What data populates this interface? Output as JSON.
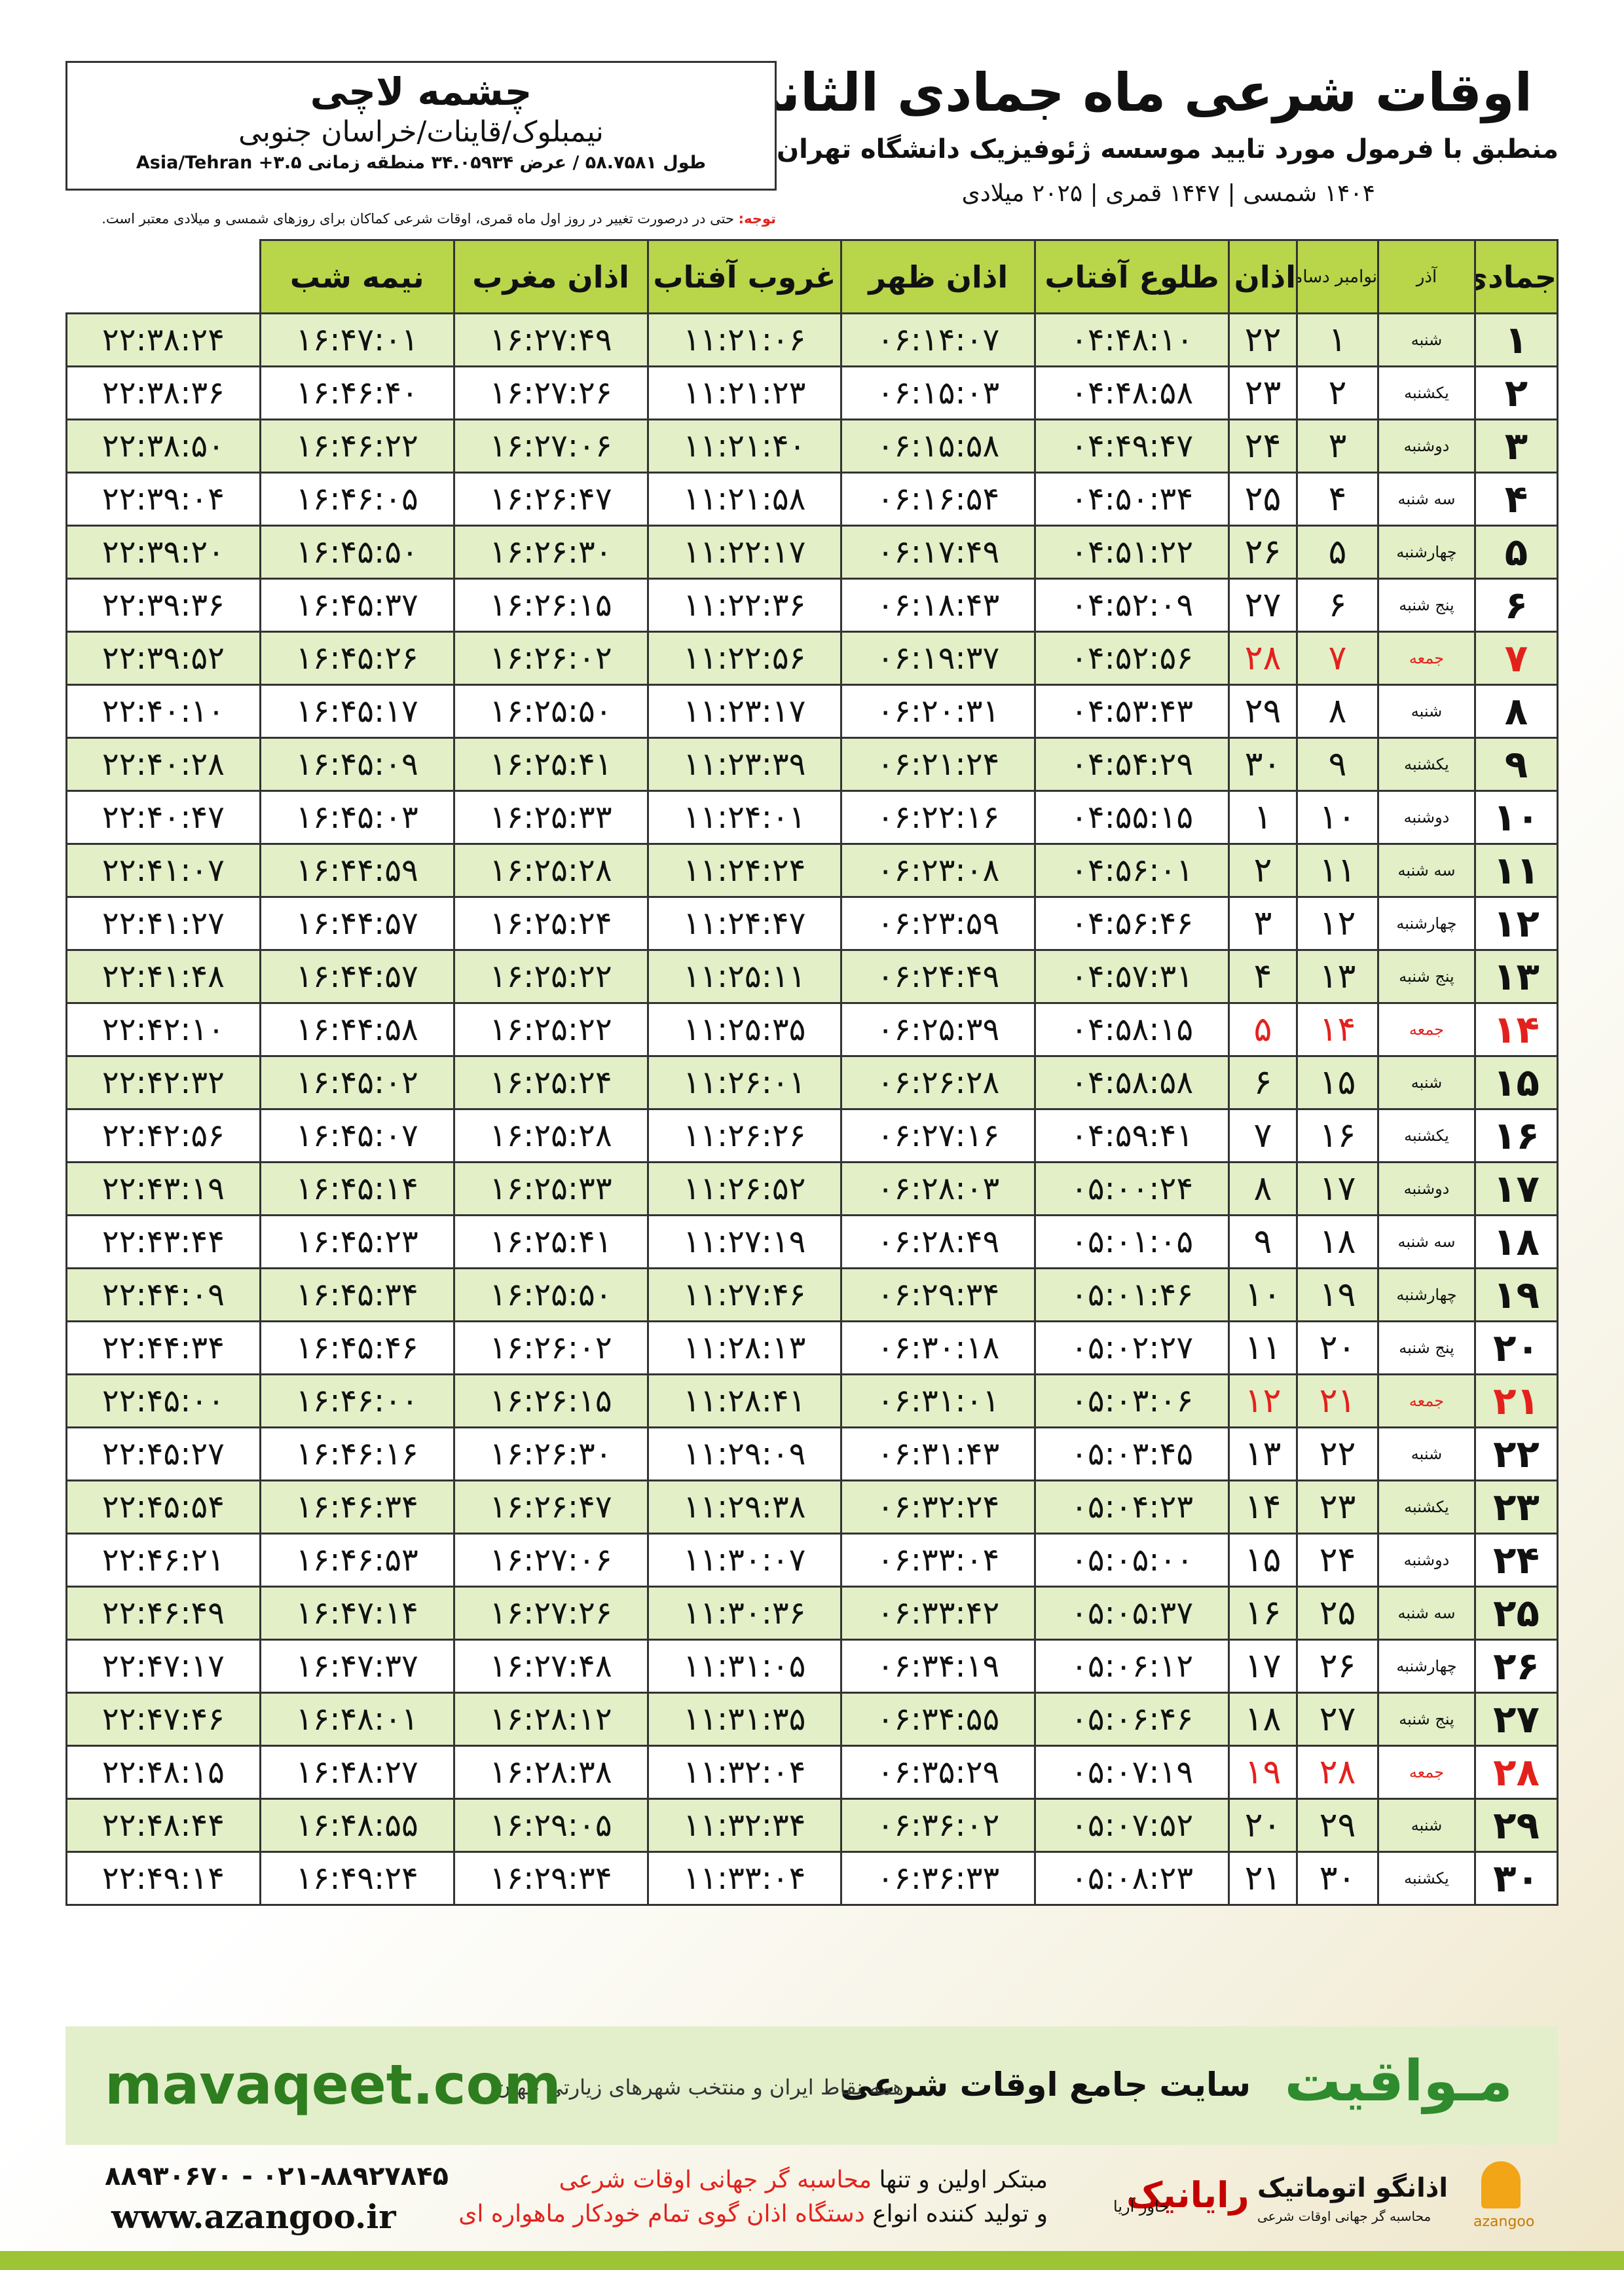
{
  "header": {
    "title": "اوقات شرعی ماه جمادی الثانی",
    "subtitle": "منطبق با فرمول مورد تایید موسسه ژئوفیزیک دانشگاه تهران",
    "dates": "۱۴۰۴ شمسی | ۱۴۴۷ قمری | ۲۰۲۵ میلادی"
  },
  "location": {
    "name": "چشمه لاچی",
    "region": "نیمبلوک/قاینات/خراسان جنوبی",
    "coords": "طول ۵۸.۷۵۸۱ / عرض ۳۴.۰۵۹۳۴ منطقه زمانی ۳.۵+ Asia/Tehran"
  },
  "note": {
    "label": "توجه:",
    "text": "حتی در درصورت تغییر در روز اول ماه قمری، اوقات شرعی کماکان برای روزهای شمسی و میلادی معتبر است."
  },
  "table": {
    "columns": [
      "جمادی الثانی",
      "آذر",
      "نوامبر دسامبر",
      "اذان صبح",
      "طلوع آفتاب",
      "اذان ظهر",
      "غروب آفتاب",
      "اذان مغرب",
      "نیمه شب"
    ],
    "rows": [
      {
        "cells": [
          "۱",
          "شنبه",
          "۱",
          "۲۲",
          "۰۴:۴۸:۱۰",
          "۰۶:۱۴:۰۷",
          "۱۱:۲۱:۰۶",
          "۱۶:۲۷:۴۹",
          "۱۶:۴۷:۰۱",
          "۲۲:۳۸:۲۴"
        ]
      },
      {
        "cells": [
          "۲",
          "یکشنبه",
          "۲",
          "۲۳",
          "۰۴:۴۸:۵۸",
          "۰۶:۱۵:۰۳",
          "۱۱:۲۱:۲۳",
          "۱۶:۲۷:۲۶",
          "۱۶:۴۶:۴۰",
          "۲۲:۳۸:۳۶"
        ]
      },
      {
        "cells": [
          "۳",
          "دوشنبه",
          "۳",
          "۲۴",
          "۰۴:۴۹:۴۷",
          "۰۶:۱۵:۵۸",
          "۱۱:۲۱:۴۰",
          "۱۶:۲۷:۰۶",
          "۱۶:۴۶:۲۲",
          "۲۲:۳۸:۵۰"
        ]
      },
      {
        "cells": [
          "۴",
          "سه شنبه",
          "۴",
          "۲۵",
          "۰۴:۵۰:۳۴",
          "۰۶:۱۶:۵۴",
          "۱۱:۲۱:۵۸",
          "۱۶:۲۶:۴۷",
          "۱۶:۴۶:۰۵",
          "۲۲:۳۹:۰۴"
        ]
      },
      {
        "cells": [
          "۵",
          "چهارشنبه",
          "۵",
          "۲۶",
          "۰۴:۵۱:۲۲",
          "۰۶:۱۷:۴۹",
          "۱۱:۲۲:۱۷",
          "۱۶:۲۶:۳۰",
          "۱۶:۴۵:۵۰",
          "۲۲:۳۹:۲۰"
        ]
      },
      {
        "cells": [
          "۶",
          "پنج شنبه",
          "۶",
          "۲۷",
          "۰۴:۵۲:۰۹",
          "۰۶:۱۸:۴۳",
          "۱۱:۲۲:۳۶",
          "۱۶:۲۶:۱۵",
          "۱۶:۴۵:۳۷",
          "۲۲:۳۹:۳۶"
        ]
      },
      {
        "cells": [
          "۷",
          "جمعه",
          "۷",
          "۲۸",
          "۰۴:۵۲:۵۶",
          "۰۶:۱۹:۳۷",
          "۱۱:۲۲:۵۶",
          "۱۶:۲۶:۰۲",
          "۱۶:۴۵:۲۶",
          "۲۲:۳۹:۵۲"
        ],
        "color": "#e3211c"
      },
      {
        "cells": [
          "۸",
          "شنبه",
          "۸",
          "۲۹",
          "۰۴:۵۳:۴۳",
          "۰۶:۲۰:۳۱",
          "۱۱:۲۳:۱۷",
          "۱۶:۲۵:۵۰",
          "۱۶:۴۵:۱۷",
          "۲۲:۴۰:۱۰"
        ]
      },
      {
        "cells": [
          "۹",
          "یکشنبه",
          "۹",
          "۳۰",
          "۰۴:۵۴:۲۹",
          "۰۶:۲۱:۲۴",
          "۱۱:۲۳:۳۹",
          "۱۶:۲۵:۴۱",
          "۱۶:۴۵:۰۹",
          "۲۲:۴۰:۲۸"
        ]
      },
      {
        "cells": [
          "۱۰",
          "دوشنبه",
          "۱۰",
          "۱",
          "۰۴:۵۵:۱۵",
          "۰۶:۲۲:۱۶",
          "۱۱:۲۴:۰۱",
          "۱۶:۲۵:۳۳",
          "۱۶:۴۵:۰۳",
          "۲۲:۴۰:۴۷"
        ]
      },
      {
        "cells": [
          "۱۱",
          "سه شنبه",
          "۱۱",
          "۲",
          "۰۴:۵۶:۰۱",
          "۰۶:۲۳:۰۸",
          "۱۱:۲۴:۲۴",
          "۱۶:۲۵:۲۸",
          "۱۶:۴۴:۵۹",
          "۲۲:۴۱:۰۷"
        ]
      },
      {
        "cells": [
          "۱۲",
          "چهارشنبه",
          "۱۲",
          "۳",
          "۰۴:۵۶:۴۶",
          "۰۶:۲۳:۵۹",
          "۱۱:۲۴:۴۷",
          "۱۶:۲۵:۲۴",
          "۱۶:۴۴:۵۷",
          "۲۲:۴۱:۲۷"
        ]
      },
      {
        "cells": [
          "۱۳",
          "پنج شنبه",
          "۱۳",
          "۴",
          "۰۴:۵۷:۳۱",
          "۰۶:۲۴:۴۹",
          "۱۱:۲۵:۱۱",
          "۱۶:۲۵:۲۲",
          "۱۶:۴۴:۵۷",
          "۲۲:۴۱:۴۸"
        ]
      },
      {
        "cells": [
          "۱۴",
          "جمعه",
          "۱۴",
          "۵",
          "۰۴:۵۸:۱۵",
          "۰۶:۲۵:۳۹",
          "۱۱:۲۵:۳۵",
          "۱۶:۲۵:۲۲",
          "۱۶:۴۴:۵۸",
          "۲۲:۴۲:۱۰"
        ],
        "color": "#e3211c"
      },
      {
        "cells": [
          "۱۵",
          "شنبه",
          "۱۵",
          "۶",
          "۰۴:۵۸:۵۸",
          "۰۶:۲۶:۲۸",
          "۱۱:۲۶:۰۱",
          "۱۶:۲۵:۲۴",
          "۱۶:۴۵:۰۲",
          "۲۲:۴۲:۳۲"
        ]
      },
      {
        "cells": [
          "۱۶",
          "یکشنبه",
          "۱۶",
          "۷",
          "۰۴:۵۹:۴۱",
          "۰۶:۲۷:۱۶",
          "۱۱:۲۶:۲۶",
          "۱۶:۲۵:۲۸",
          "۱۶:۴۵:۰۷",
          "۲۲:۴۲:۵۶"
        ]
      },
      {
        "cells": [
          "۱۷",
          "دوشنبه",
          "۱۷",
          "۸",
          "۰۵:۰۰:۲۴",
          "۰۶:۲۸:۰۳",
          "۱۱:۲۶:۵۲",
          "۱۶:۲۵:۳۳",
          "۱۶:۴۵:۱۴",
          "۲۲:۴۳:۱۹"
        ]
      },
      {
        "cells": [
          "۱۸",
          "سه شنبه",
          "۱۸",
          "۹",
          "۰۵:۰۱:۰۵",
          "۰۶:۲۸:۴۹",
          "۱۱:۲۷:۱۹",
          "۱۶:۲۵:۴۱",
          "۱۶:۴۵:۲۳",
          "۲۲:۴۳:۴۴"
        ]
      },
      {
        "cells": [
          "۱۹",
          "چهارشنبه",
          "۱۹",
          "۱۰",
          "۰۵:۰۱:۴۶",
          "۰۶:۲۹:۳۴",
          "۱۱:۲۷:۴۶",
          "۱۶:۲۵:۵۰",
          "۱۶:۴۵:۳۴",
          "۲۲:۴۴:۰۹"
        ]
      },
      {
        "cells": [
          "۲۰",
          "پنج شنبه",
          "۲۰",
          "۱۱",
          "۰۵:۰۲:۲۷",
          "۰۶:۳۰:۱۸",
          "۱۱:۲۸:۱۳",
          "۱۶:۲۶:۰۲",
          "۱۶:۴۵:۴۶",
          "۲۲:۴۴:۳۴"
        ]
      },
      {
        "cells": [
          "۲۱",
          "جمعه",
          "۲۱",
          "۱۲",
          "۰۵:۰۳:۰۶",
          "۰۶:۳۱:۰۱",
          "۱۱:۲۸:۴۱",
          "۱۶:۲۶:۱۵",
          "۱۶:۴۶:۰۰",
          "۲۲:۴۵:۰۰"
        ],
        "color": "#e3211c"
      },
      {
        "cells": [
          "۲۲",
          "شنبه",
          "۲۲",
          "۱۳",
          "۰۵:۰۳:۴۵",
          "۰۶:۳۱:۴۳",
          "۱۱:۲۹:۰۹",
          "۱۶:۲۶:۳۰",
          "۱۶:۴۶:۱۶",
          "۲۲:۴۵:۲۷"
        ]
      },
      {
        "cells": [
          "۲۳",
          "یکشنبه",
          "۲۳",
          "۱۴",
          "۰۵:۰۴:۲۳",
          "۰۶:۳۲:۲۴",
          "۱۱:۲۹:۳۸",
          "۱۶:۲۶:۴۷",
          "۱۶:۴۶:۳۴",
          "۲۲:۴۵:۵۴"
        ]
      },
      {
        "cells": [
          "۲۴",
          "دوشنبه",
          "۲۴",
          "۱۵",
          "۰۵:۰۵:۰۰",
          "۰۶:۳۳:۰۴",
          "۱۱:۳۰:۰۷",
          "۱۶:۲۷:۰۶",
          "۱۶:۴۶:۵۳",
          "۲۲:۴۶:۲۱"
        ]
      },
      {
        "cells": [
          "۲۵",
          "سه شنبه",
          "۲۵",
          "۱۶",
          "۰۵:۰۵:۳۷",
          "۰۶:۳۳:۴۲",
          "۱۱:۳۰:۳۶",
          "۱۶:۲۷:۲۶",
          "۱۶:۴۷:۱۴",
          "۲۲:۴۶:۴۹"
        ]
      },
      {
        "cells": [
          "۲۶",
          "چهارشنبه",
          "۲۶",
          "۱۷",
          "۰۵:۰۶:۱۲",
          "۰۶:۳۴:۱۹",
          "۱۱:۳۱:۰۵",
          "۱۶:۲۷:۴۸",
          "۱۶:۴۷:۳۷",
          "۲۲:۴۷:۱۷"
        ]
      },
      {
        "cells": [
          "۲۷",
          "پنج شنبه",
          "۲۷",
          "۱۸",
          "۰۵:۰۶:۴۶",
          "۰۶:۳۴:۵۵",
          "۱۱:۳۱:۳۵",
          "۱۶:۲۸:۱۲",
          "۱۶:۴۸:۰۱",
          "۲۲:۴۷:۴۶"
        ]
      },
      {
        "cells": [
          "۲۸",
          "جمعه",
          "۲۸",
          "۱۹",
          "۰۵:۰۷:۱۹",
          "۰۶:۳۵:۲۹",
          "۱۱:۳۲:۰۴",
          "۱۶:۲۸:۳۸",
          "۱۶:۴۸:۲۷",
          "۲۲:۴۸:۱۵"
        ],
        "color": "#e3211c"
      },
      {
        "cells": [
          "۲۹",
          "شنبه",
          "۲۹",
          "۲۰",
          "۰۵:۰۷:۵۲",
          "۰۶:۳۶:۰۲",
          "۱۱:۳۲:۳۴",
          "۱۶:۲۹:۰۵",
          "۱۶:۴۸:۵۵",
          "۲۲:۴۸:۴۴"
        ]
      },
      {
        "cells": [
          "۳۰",
          "یکشنبه",
          "۳۰",
          "۲۱",
          "۰۵:۰۸:۲۳",
          "۰۶:۳۶:۳۳",
          "۱۱:۳۳:۰۴",
          "۱۶:۲۹:۳۴",
          "۱۶:۴۹:۲۴",
          "۲۲:۴۹:۱۴"
        ]
      }
    ]
  },
  "banner": {
    "brand": "مـواقیت",
    "tagline": "سایت جامع اوقات شرعی",
    "scope": "همه نقاط ایران و منتخب شهرهای زیارتی جهان",
    "url": "mavaqeet.com"
  },
  "footer": {
    "phones": "۰۲۱-۸۸۹۲۷۸۴۵ - ۸۸۹۳۰۶۷۰",
    "website": "www.azangoo.ir",
    "line1": "مبتکر اولین و تنها",
    "line1_red": "محاسبه گر جهانی اوقات شرعی",
    "line2": "و تولید کننده انواع",
    "line2_red": "دستگاه اذان گوی تمام خودکار ماهواره ای",
    "logo1": "رایانیک",
    "logo1_sub": "خاور آریا",
    "logo2": "اذانگو اتوماتیک",
    "logo2_sub": "محاسبه گر جهانی اوقات شرعی",
    "logo2_en": "azangoo"
  }
}
